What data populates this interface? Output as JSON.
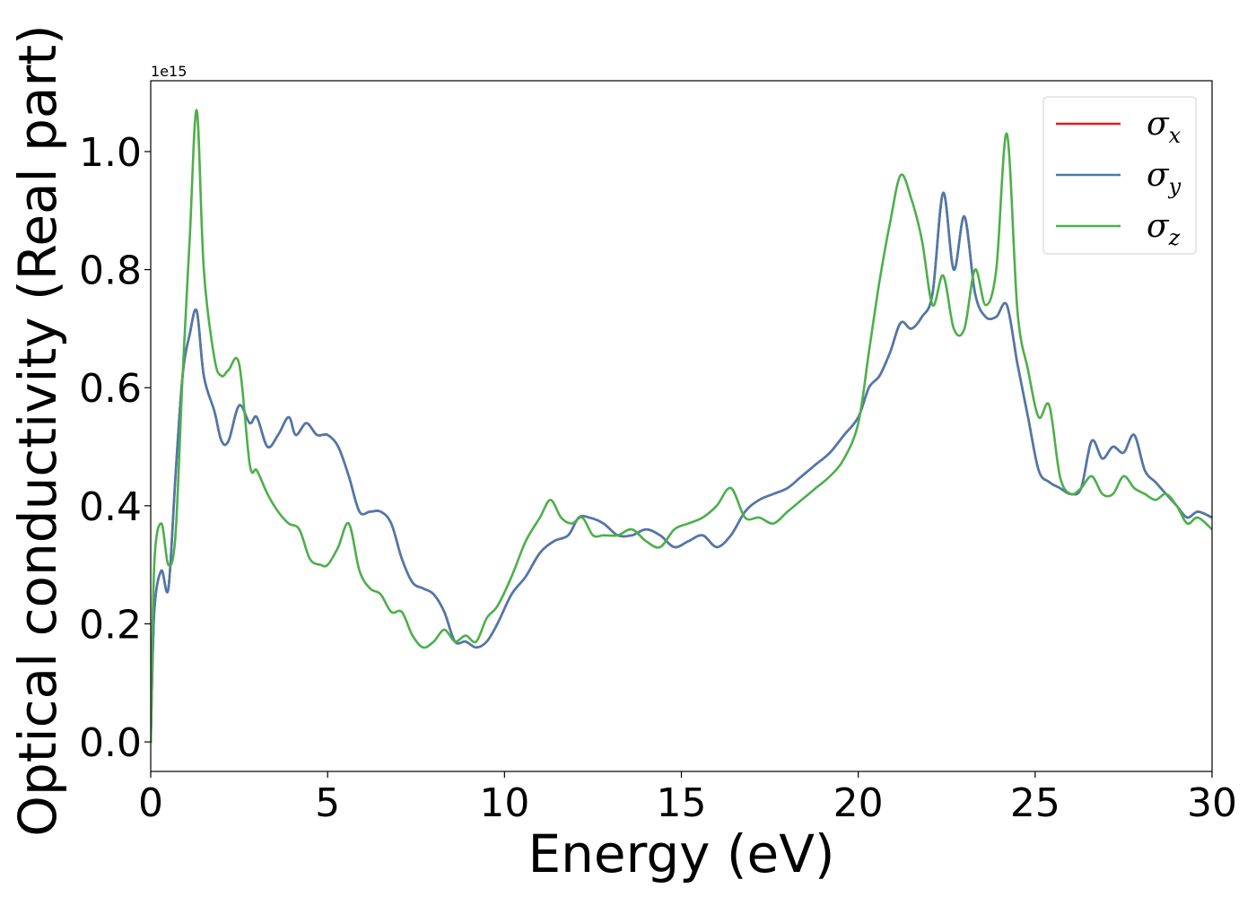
{
  "chart_data": {
    "type": "line",
    "xlabel": "Energy (eV)",
    "ylabel": "Optical conductivity (Real part)",
    "y_offset_label": "1e15",
    "xlim": [
      0,
      30
    ],
    "ylim": [
      -0.05,
      1.12
    ],
    "x_ticks": [
      0,
      5,
      10,
      15,
      20,
      25,
      30
    ],
    "x_tick_labels": [
      "0",
      "5",
      "10",
      "15",
      "20",
      "25",
      "30"
    ],
    "y_ticks": [
      0.0,
      0.2,
      0.4,
      0.6,
      0.8,
      1.0
    ],
    "y_tick_labels": [
      "0.0",
      "0.2",
      "0.4",
      "0.6",
      "0.8",
      "1.0"
    ],
    "grid": false,
    "legend_position": "top-right",
    "series": [
      {
        "name": "σx",
        "legend_symbol": "σ",
        "legend_sub": "x",
        "color": "#e41a1c",
        "x": [
          0,
          0.1,
          0.3,
          0.5,
          0.7,
          0.9,
          1.1,
          1.3,
          1.5,
          1.8,
          2.0,
          2.2,
          2.5,
          2.8,
          3.0,
          3.3,
          3.6,
          3.9,
          4.1,
          4.4,
          4.7,
          5.0,
          5.3,
          5.6,
          5.9,
          6.2,
          6.5,
          6.8,
          7.1,
          7.4,
          7.7,
          8.0,
          8.3,
          8.6,
          8.9,
          9.2,
          9.5,
          9.8,
          10.2,
          10.6,
          11.0,
          11.4,
          11.8,
          12.1,
          12.4,
          12.8,
          13.2,
          13.6,
          14.0,
          14.4,
          14.8,
          15.2,
          15.6,
          16.0,
          16.4,
          16.8,
          17.2,
          17.6,
          18.0,
          18.4,
          18.8,
          19.2,
          19.6,
          20.0,
          20.3,
          20.6,
          20.9,
          21.2,
          21.5,
          21.8,
          22.1,
          22.4,
          22.7,
          23.0,
          23.3,
          23.6,
          23.9,
          24.2,
          24.5,
          24.8,
          25.1,
          25.4,
          25.7,
          26.0,
          26.3,
          26.6,
          26.9,
          27.2,
          27.5,
          27.8,
          28.1,
          28.4,
          28.7,
          29.0,
          29.3,
          29.6,
          30.0
        ],
        "y": [
          0.0,
          0.22,
          0.29,
          0.26,
          0.45,
          0.62,
          0.69,
          0.73,
          0.62,
          0.56,
          0.51,
          0.51,
          0.57,
          0.54,
          0.55,
          0.5,
          0.52,
          0.55,
          0.52,
          0.54,
          0.52,
          0.52,
          0.5,
          0.45,
          0.39,
          0.39,
          0.39,
          0.37,
          0.31,
          0.27,
          0.26,
          0.25,
          0.22,
          0.17,
          0.17,
          0.16,
          0.17,
          0.2,
          0.25,
          0.28,
          0.32,
          0.34,
          0.35,
          0.38,
          0.38,
          0.37,
          0.35,
          0.35,
          0.36,
          0.35,
          0.33,
          0.34,
          0.35,
          0.33,
          0.35,
          0.39,
          0.41,
          0.42,
          0.43,
          0.45,
          0.47,
          0.49,
          0.52,
          0.55,
          0.6,
          0.62,
          0.66,
          0.71,
          0.7,
          0.72,
          0.76,
          0.93,
          0.8,
          0.89,
          0.76,
          0.72,
          0.72,
          0.74,
          0.64,
          0.55,
          0.46,
          0.44,
          0.43,
          0.42,
          0.43,
          0.51,
          0.48,
          0.5,
          0.49,
          0.52,
          0.46,
          0.44,
          0.42,
          0.4,
          0.38,
          0.39,
          0.38
        ]
      },
      {
        "name": "σy",
        "legend_symbol": "σ",
        "legend_sub": "y",
        "color": "#4a7aad",
        "x": [
          0,
          0.1,
          0.3,
          0.5,
          0.7,
          0.9,
          1.1,
          1.3,
          1.5,
          1.8,
          2.0,
          2.2,
          2.5,
          2.8,
          3.0,
          3.3,
          3.6,
          3.9,
          4.1,
          4.4,
          4.7,
          5.0,
          5.3,
          5.6,
          5.9,
          6.2,
          6.5,
          6.8,
          7.1,
          7.4,
          7.7,
          8.0,
          8.3,
          8.6,
          8.9,
          9.2,
          9.5,
          9.8,
          10.2,
          10.6,
          11.0,
          11.4,
          11.8,
          12.1,
          12.4,
          12.8,
          13.2,
          13.6,
          14.0,
          14.4,
          14.8,
          15.2,
          15.6,
          16.0,
          16.4,
          16.8,
          17.2,
          17.6,
          18.0,
          18.4,
          18.8,
          19.2,
          19.6,
          20.0,
          20.3,
          20.6,
          20.9,
          21.2,
          21.5,
          21.8,
          22.1,
          22.4,
          22.7,
          23.0,
          23.3,
          23.6,
          23.9,
          24.2,
          24.5,
          24.8,
          25.1,
          25.4,
          25.7,
          26.0,
          26.3,
          26.6,
          26.9,
          27.2,
          27.5,
          27.8,
          28.1,
          28.4,
          28.7,
          29.0,
          29.3,
          29.6,
          30.0
        ],
        "y": [
          0.0,
          0.22,
          0.29,
          0.26,
          0.45,
          0.62,
          0.69,
          0.73,
          0.62,
          0.56,
          0.51,
          0.51,
          0.57,
          0.54,
          0.55,
          0.5,
          0.52,
          0.55,
          0.52,
          0.54,
          0.52,
          0.52,
          0.5,
          0.45,
          0.39,
          0.39,
          0.39,
          0.37,
          0.31,
          0.27,
          0.26,
          0.25,
          0.22,
          0.17,
          0.17,
          0.16,
          0.17,
          0.2,
          0.25,
          0.28,
          0.32,
          0.34,
          0.35,
          0.38,
          0.38,
          0.37,
          0.35,
          0.35,
          0.36,
          0.35,
          0.33,
          0.34,
          0.35,
          0.33,
          0.35,
          0.39,
          0.41,
          0.42,
          0.43,
          0.45,
          0.47,
          0.49,
          0.52,
          0.55,
          0.6,
          0.62,
          0.66,
          0.71,
          0.7,
          0.72,
          0.76,
          0.93,
          0.8,
          0.89,
          0.76,
          0.72,
          0.72,
          0.74,
          0.64,
          0.55,
          0.46,
          0.44,
          0.43,
          0.42,
          0.43,
          0.51,
          0.48,
          0.5,
          0.49,
          0.52,
          0.46,
          0.44,
          0.42,
          0.4,
          0.38,
          0.39,
          0.38
        ]
      },
      {
        "name": "σz",
        "legend_symbol": "σ",
        "legend_sub": "z",
        "color": "#4daf4a",
        "x": [
          0,
          0.1,
          0.3,
          0.5,
          0.7,
          0.9,
          1.1,
          1.3,
          1.5,
          1.8,
          2.0,
          2.2,
          2.5,
          2.8,
          3.0,
          3.3,
          3.6,
          3.9,
          4.2,
          4.5,
          4.8,
          5.0,
          5.3,
          5.6,
          5.9,
          6.2,
          6.5,
          6.8,
          7.1,
          7.4,
          7.7,
          8.0,
          8.3,
          8.6,
          8.9,
          9.2,
          9.5,
          9.8,
          10.2,
          10.6,
          11.0,
          11.3,
          11.6,
          11.9,
          12.2,
          12.5,
          12.8,
          13.2,
          13.6,
          14.0,
          14.4,
          14.8,
          15.2,
          15.6,
          16.0,
          16.4,
          16.8,
          17.2,
          17.6,
          18.0,
          18.4,
          18.8,
          19.2,
          19.6,
          20.0,
          20.3,
          20.6,
          20.9,
          21.2,
          21.5,
          21.8,
          22.1,
          22.4,
          22.7,
          23.0,
          23.3,
          23.6,
          23.9,
          24.2,
          24.5,
          24.8,
          25.1,
          25.4,
          25.7,
          26.0,
          26.3,
          26.6,
          26.9,
          27.2,
          27.5,
          27.8,
          28.1,
          28.4,
          28.7,
          29.0,
          29.3,
          29.6,
          30.0
        ],
        "y": [
          0.0,
          0.3,
          0.37,
          0.3,
          0.35,
          0.62,
          0.85,
          1.07,
          0.8,
          0.65,
          0.62,
          0.63,
          0.64,
          0.47,
          0.46,
          0.42,
          0.39,
          0.37,
          0.36,
          0.31,
          0.3,
          0.3,
          0.33,
          0.37,
          0.29,
          0.26,
          0.25,
          0.22,
          0.22,
          0.18,
          0.16,
          0.17,
          0.19,
          0.17,
          0.18,
          0.17,
          0.21,
          0.23,
          0.28,
          0.34,
          0.38,
          0.41,
          0.38,
          0.37,
          0.38,
          0.35,
          0.35,
          0.35,
          0.36,
          0.34,
          0.33,
          0.36,
          0.37,
          0.38,
          0.4,
          0.43,
          0.38,
          0.38,
          0.37,
          0.39,
          0.41,
          0.43,
          0.45,
          0.48,
          0.54,
          0.66,
          0.78,
          0.88,
          0.96,
          0.92,
          0.85,
          0.74,
          0.79,
          0.7,
          0.7,
          0.8,
          0.74,
          0.8,
          1.03,
          0.73,
          0.63,
          0.55,
          0.57,
          0.45,
          0.42,
          0.43,
          0.45,
          0.42,
          0.42,
          0.45,
          0.43,
          0.42,
          0.41,
          0.42,
          0.4,
          0.37,
          0.38,
          0.36
        ]
      }
    ]
  }
}
